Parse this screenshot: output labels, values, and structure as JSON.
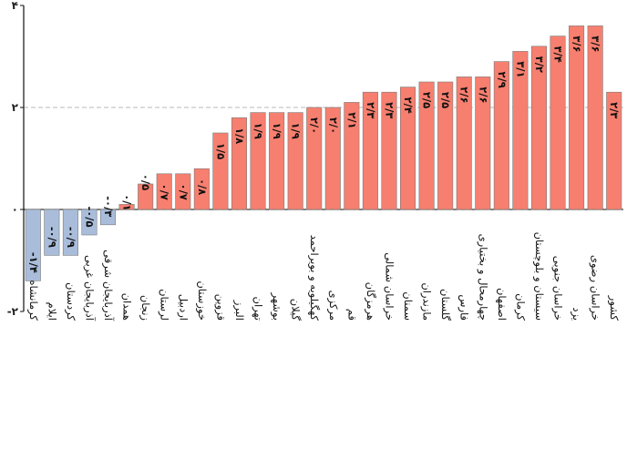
{
  "chart_data": {
    "type": "bar",
    "title": "",
    "xlabel": "",
    "ylabel": "",
    "ylim": [
      -2,
      4
    ],
    "yticks": [
      {
        "value": -2,
        "label": "-۲"
      },
      {
        "value": 0,
        "label": "۰"
      },
      {
        "value": 2,
        "label": "۲"
      },
      {
        "value": 4,
        "label": "۴"
      }
    ],
    "grid": "horizontal dashed",
    "categories": [
      "کرمانشاه",
      "ایلام",
      "کردستان",
      "آذربایجان غربی",
      "آذربایجان شرقی",
      "همدان",
      "زنجان",
      "لرستان",
      "اردبیل",
      "خوزستان",
      "قزوین",
      "البرز",
      "تهران",
      "بوشهر",
      "گیلان",
      "کهگیلویه و بویراحمد",
      "مرکزی",
      "قم",
      "هرمزگان",
      "خراسان شمالی",
      "سمنان",
      "مازندران",
      "گلستان",
      "فارس",
      "چهارمحال و بختیاری",
      "اصفهان",
      "کرمان",
      "سیستان و بلوچستان",
      "خراسان جنوبی",
      "یزد",
      "خراسان رضوی",
      "کشور"
    ],
    "values": [
      -1.4,
      -0.9,
      -0.9,
      -0.5,
      -0.3,
      0.1,
      0.5,
      0.7,
      0.7,
      0.8,
      1.5,
      1.8,
      1.9,
      1.9,
      1.9,
      2.0,
      2.0,
      2.1,
      2.3,
      2.3,
      2.4,
      2.5,
      2.5,
      2.6,
      2.6,
      2.9,
      3.1,
      3.2,
      3.4,
      3.6,
      3.6,
      2.3
    ],
    "value_labels": [
      "-۱/۴",
      "-۰/۹",
      "-۰/۹",
      "-۰/۵",
      "-۰/۳",
      "۰/۱",
      "۰/۵",
      "۰/۷",
      "۰/۷",
      "۰/۸",
      "۱/۵",
      "۱/۸",
      "۱/۹",
      "۱/۹",
      "۱/۹",
      "۲/۰",
      "۲/۰",
      "۲/۱",
      "۲/۳",
      "۲/۳",
      "۲/۴",
      "۲/۵",
      "۲/۵",
      "۲/۶",
      "۲/۶",
      "۲/۹",
      "۳/۱",
      "۳/۲",
      "۳/۴",
      "۳/۶",
      "۳/۶",
      "۲/۳"
    ],
    "colors": {
      "positive": "#f77f6f",
      "negative": "#a9bddb",
      "bar_edge": "#7a7a7a",
      "grid": "#c8c8c8",
      "axis": "#111111"
    }
  }
}
